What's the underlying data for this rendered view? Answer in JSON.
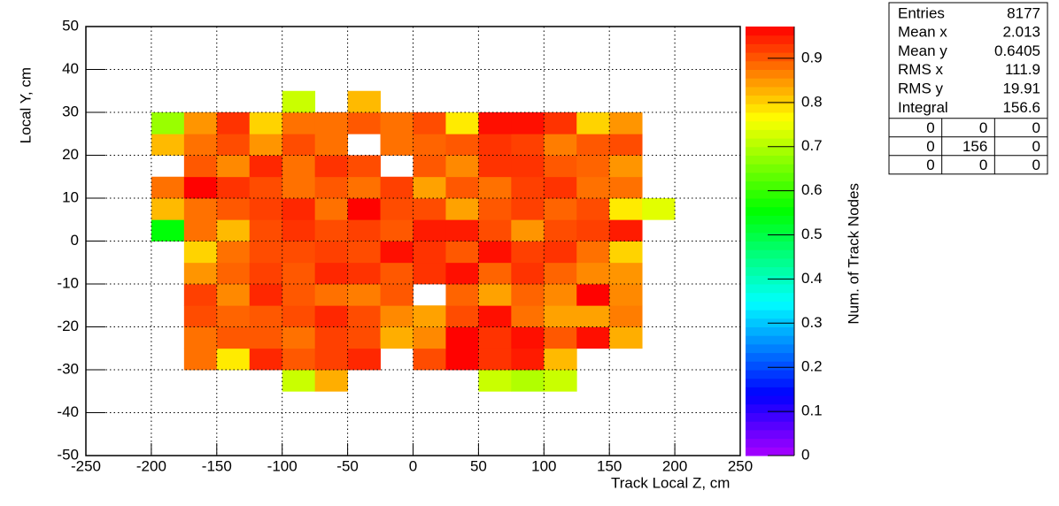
{
  "chart_data": {
    "type": "heatmap",
    "x_label": "Track Local Z, cm",
    "y_label": "Local Y, cm",
    "z_label": "Num. of Track Nodes",
    "xlim": [
      -250,
      250
    ],
    "ylim": [
      -50,
      50
    ],
    "zlim": [
      0,
      0.972
    ],
    "xticks": [
      -250,
      -200,
      -150,
      -100,
      -50,
      0,
      50,
      100,
      150,
      200,
      250
    ],
    "yticks": [
      -50,
      -40,
      -30,
      -20,
      -10,
      0,
      10,
      20,
      30,
      40,
      50
    ],
    "zticks": [
      0,
      0.1,
      0.2,
      0.3,
      0.4,
      0.5,
      0.6,
      0.7,
      0.8,
      0.9
    ],
    "grid": true,
    "colormap": "rainbow",
    "xbins": [
      -250,
      -225,
      -200,
      -175,
      -150,
      -125,
      -100,
      -75,
      -50,
      -25,
      0,
      25,
      50,
      75,
      100,
      125,
      150,
      175,
      200,
      225,
      250
    ],
    "ybins": [
      -50,
      -45,
      -40,
      -35,
      -30,
      -25,
      -20,
      -15,
      -10,
      -5,
      0,
      5,
      10,
      15,
      20,
      25,
      30,
      35,
      40,
      45,
      50
    ],
    "z": [
      [
        null,
        null,
        null,
        null,
        null,
        null,
        null,
        null,
        null,
        null,
        null,
        null,
        null,
        null,
        null,
        null,
        null,
        null,
        null,
        null
      ],
      [
        null,
        null,
        null,
        null,
        null,
        null,
        null,
        null,
        null,
        null,
        null,
        null,
        null,
        null,
        null,
        null,
        null,
        null,
        null,
        null
      ],
      [
        null,
        null,
        null,
        null,
        null,
        null,
        null,
        null,
        null,
        null,
        null,
        null,
        null,
        null,
        null,
        null,
        null,
        null,
        null,
        null
      ],
      [
        null,
        null,
        null,
        null,
        null,
        null,
        0.72,
        0.83,
        null,
        null,
        null,
        null,
        0.72,
        0.7,
        0.72,
        null,
        null,
        null,
        null,
        null
      ],
      [
        null,
        null,
        null,
        0.88,
        0.78,
        0.94,
        0.9,
        0.92,
        0.94,
        null,
        0.91,
        0.97,
        0.93,
        0.95,
        0.82,
        null,
        null,
        null,
        null,
        null
      ],
      [
        null,
        null,
        null,
        0.88,
        0.9,
        0.9,
        0.88,
        0.92,
        0.91,
        0.83,
        0.86,
        0.97,
        0.93,
        0.96,
        0.9,
        0.96,
        0.83,
        null,
        null,
        null
      ],
      [
        null,
        null,
        null,
        0.91,
        0.89,
        0.9,
        0.91,
        0.94,
        0.91,
        0.86,
        0.84,
        0.91,
        0.96,
        0.88,
        0.84,
        0.84,
        0.87,
        null,
        null,
        null
      ],
      [
        null,
        null,
        null,
        0.92,
        0.86,
        0.94,
        0.9,
        0.88,
        0.87,
        0.9,
        null,
        0.89,
        0.84,
        0.89,
        0.86,
        0.97,
        0.86,
        null,
        null,
        null
      ],
      [
        null,
        null,
        null,
        0.85,
        0.89,
        0.92,
        0.9,
        0.94,
        0.93,
        0.9,
        0.93,
        0.96,
        0.89,
        0.93,
        0.89,
        0.86,
        0.85,
        null,
        null,
        null
      ],
      [
        null,
        null,
        null,
        0.8,
        0.88,
        0.91,
        0.91,
        0.92,
        0.91,
        0.96,
        0.93,
        0.9,
        0.96,
        0.92,
        0.93,
        0.88,
        0.8,
        null,
        null,
        null
      ],
      [
        null,
        null,
        0.55,
        0.88,
        0.82,
        0.91,
        0.93,
        0.91,
        0.92,
        0.9,
        0.95,
        0.95,
        0.91,
        0.85,
        0.91,
        0.92,
        0.95,
        null,
        null,
        null
      ],
      [
        null,
        null,
        0.82,
        0.88,
        0.9,
        0.92,
        0.94,
        0.88,
        0.97,
        0.91,
        0.91,
        0.84,
        0.9,
        0.92,
        0.89,
        0.91,
        0.78,
        0.74,
        null,
        null
      ],
      [
        null,
        null,
        0.88,
        0.97,
        0.93,
        0.91,
        0.88,
        0.9,
        0.88,
        0.92,
        0.84,
        0.9,
        0.88,
        0.92,
        0.93,
        0.88,
        0.88,
        null,
        null,
        null
      ],
      [
        null,
        null,
        null,
        0.9,
        0.86,
        0.94,
        0.88,
        0.93,
        0.91,
        null,
        0.9,
        0.86,
        0.93,
        0.93,
        0.9,
        0.89,
        0.85,
        null,
        null,
        null
      ],
      [
        null,
        null,
        0.82,
        0.88,
        0.91,
        0.85,
        0.91,
        0.88,
        null,
        0.88,
        0.89,
        0.9,
        0.93,
        0.92,
        0.87,
        0.9,
        0.91,
        null,
        null,
        null
      ],
      [
        null,
        null,
        0.68,
        0.85,
        0.93,
        0.8,
        0.88,
        0.88,
        0.9,
        0.88,
        0.91,
        0.78,
        0.96,
        0.96,
        0.93,
        0.8,
        0.85,
        null,
        null,
        null
      ],
      [
        null,
        null,
        null,
        null,
        null,
        null,
        0.72,
        null,
        0.82,
        null,
        null,
        null,
        null,
        null,
        null,
        null,
        null,
        null,
        null,
        null
      ],
      [
        null,
        null,
        null,
        null,
        null,
        null,
        null,
        null,
        null,
        null,
        null,
        null,
        null,
        null,
        null,
        null,
        null,
        null,
        null,
        null
      ],
      [
        null,
        null,
        null,
        null,
        null,
        null,
        null,
        null,
        null,
        null,
        null,
        null,
        null,
        null,
        null,
        null,
        null,
        null,
        null,
        null
      ],
      [
        null,
        null,
        null,
        null,
        null,
        null,
        null,
        null,
        null,
        null,
        null,
        null,
        null,
        null,
        null,
        null,
        null,
        null,
        null,
        null
      ]
    ],
    "stats": [
      {
        "label": "Entries",
        "value": 8177
      },
      {
        "label": "Mean x",
        "value": 2.013
      },
      {
        "label": "Mean y",
        "value": 0.6405
      },
      {
        "label": "RMS x",
        "value": 111.9
      },
      {
        "label": "RMS y",
        "value": 19.91
      },
      {
        "label": "Integral",
        "value": 156.6
      }
    ],
    "overflow": [
      [
        0,
        0,
        0
      ],
      [
        0,
        156,
        0
      ],
      [
        0,
        0,
        0
      ]
    ]
  }
}
